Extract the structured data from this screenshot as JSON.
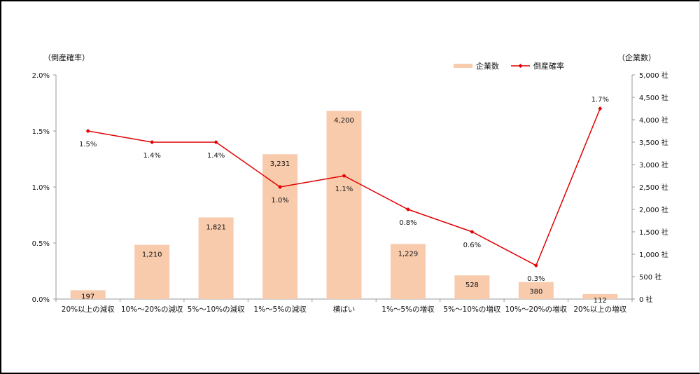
{
  "chart_data": {
    "type": "bar+line",
    "title": "",
    "categories": [
      "20%以上の減収",
      "10%～20%の減収",
      "5%～10%の減収",
      "1%～5%の減収",
      "横ばい",
      "1%～5%の増収",
      "5%～10%の増収",
      "10%～20%の増収",
      "20%以上の増収"
    ],
    "series": [
      {
        "name": "企業数",
        "type": "bar",
        "axis": "right",
        "color": "#F8CBAD",
        "values": [
          197,
          1210,
          1821,
          3231,
          4200,
          1229,
          528,
          380,
          112
        ],
        "labels": [
          "197",
          "1,210",
          "1,821",
          "3,231",
          "4,200",
          "1,229",
          "528",
          "380",
          "112"
        ]
      },
      {
        "name": "倒産確率",
        "type": "line",
        "axis": "left",
        "color": "#E00000",
        "values": [
          1.5,
          1.4,
          1.4,
          1.0,
          1.1,
          0.8,
          0.6,
          0.3,
          1.7
        ],
        "labels": [
          "1.5%",
          "1.4%",
          "1.4%",
          "1.0%",
          "1.1%",
          "0.8%",
          "0.6%",
          "0.3%",
          "1.7%"
        ]
      }
    ],
    "left_axis": {
      "title": "（倒産確率）",
      "ylim": [
        0,
        2.0
      ],
      "ticks": [
        "0.0%",
        "0.5%",
        "1.0%",
        "1.5%",
        "2.0%"
      ]
    },
    "right_axis": {
      "title": "（企業数）",
      "ylim": [
        0,
        5000
      ],
      "ticks": [
        "0 社",
        "500 社",
        "1,000 社",
        "1,500 社",
        "2,000 社",
        "2,500 社",
        "3,000 社",
        "3,500 社",
        "4,000 社",
        "4,500 社",
        "5,000 社"
      ]
    },
    "legend": {
      "position": "top-right",
      "entries": [
        "企業数",
        "倒産確率"
      ]
    },
    "grid": false
  }
}
